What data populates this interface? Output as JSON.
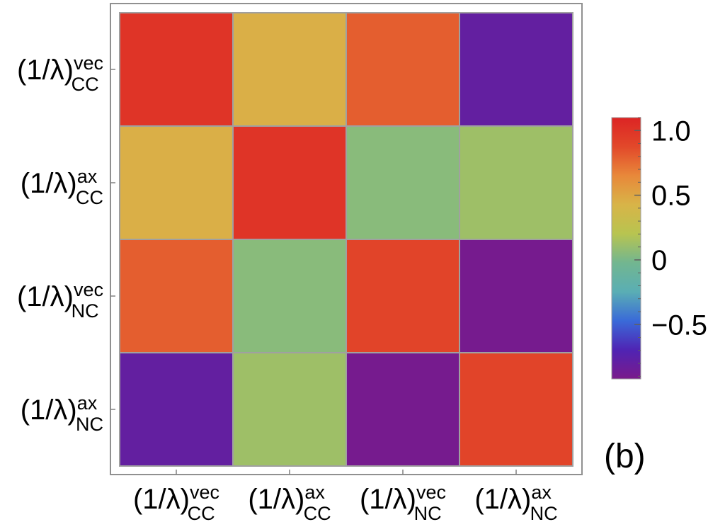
{
  "chart_data": {
    "type": "heatmap",
    "labels": [
      {
        "base": "(1/λ)",
        "sup": "vec",
        "sub": "CC"
      },
      {
        "base": "(1/λ)",
        "sup": "ax",
        "sub": "CC"
      },
      {
        "base": "(1/λ)",
        "sup": "vec",
        "sub": "NC"
      },
      {
        "base": "(1/λ)",
        "sup": "ax",
        "sub": "NC"
      }
    ],
    "matrix": [
      [
        1.0,
        0.45,
        0.8,
        -0.8
      ],
      [
        0.45,
        1.0,
        0.05,
        0.12
      ],
      [
        0.8,
        0.05,
        0.9,
        -0.9
      ],
      [
        -0.8,
        0.12,
        -0.9,
        0.9
      ]
    ],
    "colorbar": {
      "min": -0.92,
      "max": 1.1,
      "ticks": [
        {
          "value": 1.0,
          "label": "1.0"
        },
        {
          "value": 0.5,
          "label": "0.5"
        },
        {
          "value": 0,
          "label": "0"
        },
        {
          "value": -0.5,
          "label": "−0.5"
        }
      ]
    },
    "panel_label": "(b)",
    "colors": {
      "stops": [
        "#7a1a8a",
        "#4f24b4",
        "#3a6ad8",
        "#5aaeb4",
        "#72b690",
        "#b8c450",
        "#d8b448",
        "#e8883a",
        "#e2482a",
        "#dc2424"
      ],
      "cell_border": "#a0a0a0",
      "frame": "#909090"
    }
  }
}
